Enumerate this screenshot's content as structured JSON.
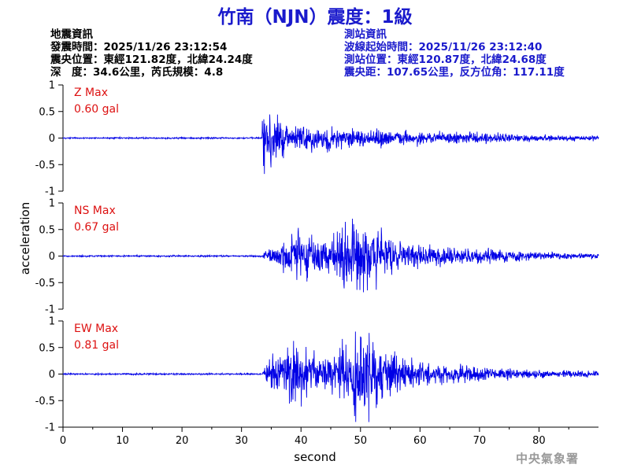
{
  "header": {
    "title": "竹南（NJN）震度：1級"
  },
  "earthquake_info": {
    "heading": "地震資訊",
    "origin_time": "發震時間：2025/11/26 23:12:54",
    "epicenter": "震央位置：東經121.82度，北緯24.24度",
    "depth_magnitude": "深　度：34.6公里，芮氏規模：4.8"
  },
  "station_info": {
    "heading": "測站資訊",
    "waveform_start": "波線起始時間：2025/11/26 23:12:40",
    "station_location": "測站位置：東經120.87度，北緯24.68度",
    "distance_azimuth": "震央距：107.65公里，反方位角：117.11度"
  },
  "footer": {
    "agency": "中央氣象署"
  },
  "colors": {
    "trace": "#0000e6",
    "title": "#1a1acc",
    "max_label": "#dd1111"
  },
  "chart_data": {
    "type": "line",
    "xlabel": "second",
    "ylabel": "acceleration",
    "xlim": [
      0,
      90
    ],
    "x_ticks": [
      "0",
      "10",
      "20",
      "30",
      "40",
      "50",
      "60",
      "70",
      "80"
    ],
    "y_ticks": [
      "1",
      "0.5",
      "0",
      "-0.5",
      "-1"
    ],
    "grid": false,
    "panels": [
      {
        "component": "Z",
        "max_label": "Z Max",
        "max_value": "0.60 gal",
        "ylim": [
          -1,
          1
        ],
        "p_arrival_s": 33.5,
        "noise_level": 0.01,
        "envelope": [
          [
            33.4,
            0.0
          ],
          [
            33.6,
            0.42
          ],
          [
            35,
            0.3
          ],
          [
            38,
            0.22
          ],
          [
            42,
            0.15
          ],
          [
            50,
            0.12
          ],
          [
            60,
            0.08
          ],
          [
            72,
            0.07
          ],
          [
            80,
            0.04
          ],
          [
            90,
            0.03
          ]
        ]
      },
      {
        "component": "NS",
        "max_label": "NS Max",
        "max_value": "0.67 gal",
        "ylim": [
          -1,
          1
        ],
        "p_arrival_s": 33.5,
        "noise_level": 0.01,
        "envelope": [
          [
            33.4,
            0.0
          ],
          [
            34,
            0.08
          ],
          [
            36,
            0.15
          ],
          [
            40,
            0.33
          ],
          [
            45,
            0.25
          ],
          [
            49,
            0.48
          ],
          [
            51,
            0.4
          ],
          [
            55,
            0.26
          ],
          [
            60,
            0.15
          ],
          [
            70,
            0.09
          ],
          [
            80,
            0.05
          ],
          [
            90,
            0.03
          ]
        ]
      },
      {
        "component": "EW",
        "max_label": "EW Max",
        "max_value": "0.81 gal",
        "ylim": [
          -1,
          1
        ],
        "p_arrival_s": 33.5,
        "noise_level": 0.01,
        "envelope": [
          [
            33.4,
            0.0
          ],
          [
            34,
            0.12
          ],
          [
            36,
            0.28
          ],
          [
            40,
            0.38
          ],
          [
            44,
            0.2
          ],
          [
            48,
            0.45
          ],
          [
            50,
            0.62
          ],
          [
            53,
            0.4
          ],
          [
            58,
            0.2
          ],
          [
            64,
            0.12
          ],
          [
            72,
            0.08
          ],
          [
            80,
            0.05
          ],
          [
            90,
            0.04
          ]
        ]
      }
    ]
  }
}
